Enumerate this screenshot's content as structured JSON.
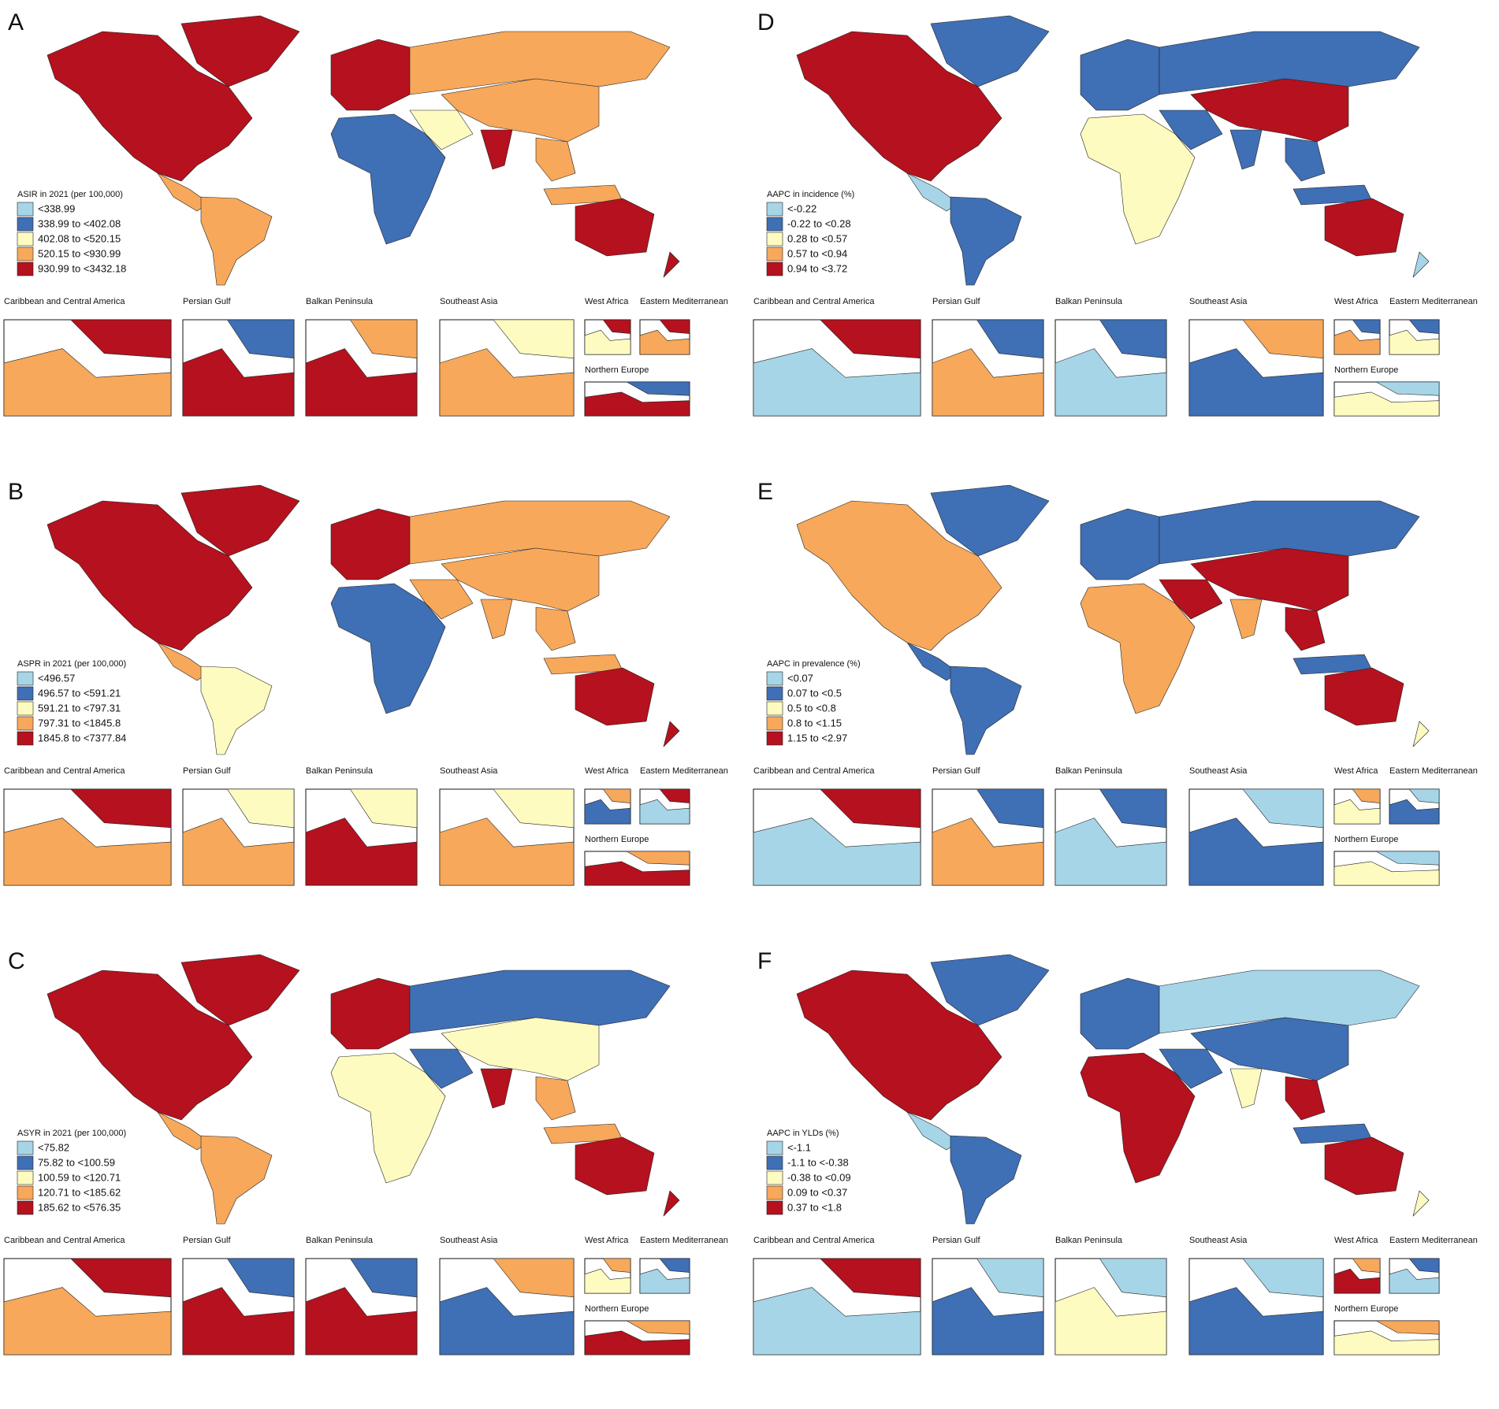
{
  "legend_colors": [
    "#a6d5e8",
    "#3f6fb5",
    "#fefbc0",
    "#f7a85a",
    "#b5111e"
  ],
  "panels": [
    {
      "letter": "A",
      "legend_title": "ASIR in 2021 (per 100,000)",
      "legend_items": [
        "<338.99",
        "338.99 to <402.08",
        "402.08 to <520.15",
        "520.15 to <930.99",
        "930.99 to <3432.18"
      ],
      "insets": [
        "Caribbean and Central America",
        "Persian Gulf",
        "Balkan Peninsula",
        "Southeast Asia",
        "West Africa",
        "Eastern Mediterranean",
        "Northern Europe"
      ]
    },
    {
      "letter": "D",
      "legend_title": "AAPC in incidence (%)",
      "legend_items": [
        "<-0.22",
        "-0.22 to <0.28",
        "0.28 to <0.57",
        "0.57 to <0.94",
        "0.94 to <3.72"
      ],
      "insets": [
        "Caribbean and Central America",
        "Persian Gulf",
        "Balkan Peninsula",
        "Southeast Asia",
        "West Africa",
        "Eastern Mediterranean",
        "Northern Europe"
      ]
    },
    {
      "letter": "B",
      "legend_title": "ASPR in 2021 (per 100,000)",
      "legend_items": [
        "<496.57",
        "496.57 to <591.21",
        "591.21 to <797.31",
        "797.31 to <1845.8",
        "1845.8 to <7377.84"
      ],
      "insets": [
        "Caribbean and Central America",
        "Persian Gulf",
        "Balkan Peninsula",
        "Southeast Asia",
        "West Africa",
        "Eastern Mediterranean",
        "Northern Europe"
      ]
    },
    {
      "letter": "E",
      "legend_title": "AAPC in prevalence (%)",
      "legend_items": [
        "<0.07",
        "0.07 to <0.5",
        "0.5 to <0.8",
        "0.8 to <1.15",
        "1.15 to <2.97"
      ],
      "insets": [
        "Caribbean and Central America",
        "Persian Gulf",
        "Balkan Peninsula",
        "Southeast Asia",
        "West Africa",
        "Eastern Mediterranean",
        "Northern Europe"
      ]
    },
    {
      "letter": "C",
      "legend_title": "ASYR in 2021 (per 100,000)",
      "legend_items": [
        "<75.82",
        "75.82 to <100.59",
        "100.59 to <120.71",
        "120.71 to <185.62",
        "185.62 to <576.35"
      ],
      "insets": [
        "Caribbean and Central America",
        "Persian Gulf",
        "Balkan Peninsula",
        "Southeast Asia",
        "West Africa",
        "Eastern Mediterranean",
        "Northern Europe"
      ]
    },
    {
      "letter": "F",
      "legend_title": "AAPC in YLDs (%)",
      "legend_items": [
        "<-1.1",
        "-1.1 to <-0.38",
        "-0.38 to <0.09",
        "0.09 to <0.37",
        "0.37 to <1.8"
      ],
      "insets": [
        "Caribbean and Central America",
        "Persian Gulf",
        "Balkan Peninsula",
        "Southeast Asia",
        "West Africa",
        "Eastern Mediterranean",
        "Northern Europe"
      ]
    }
  ]
}
